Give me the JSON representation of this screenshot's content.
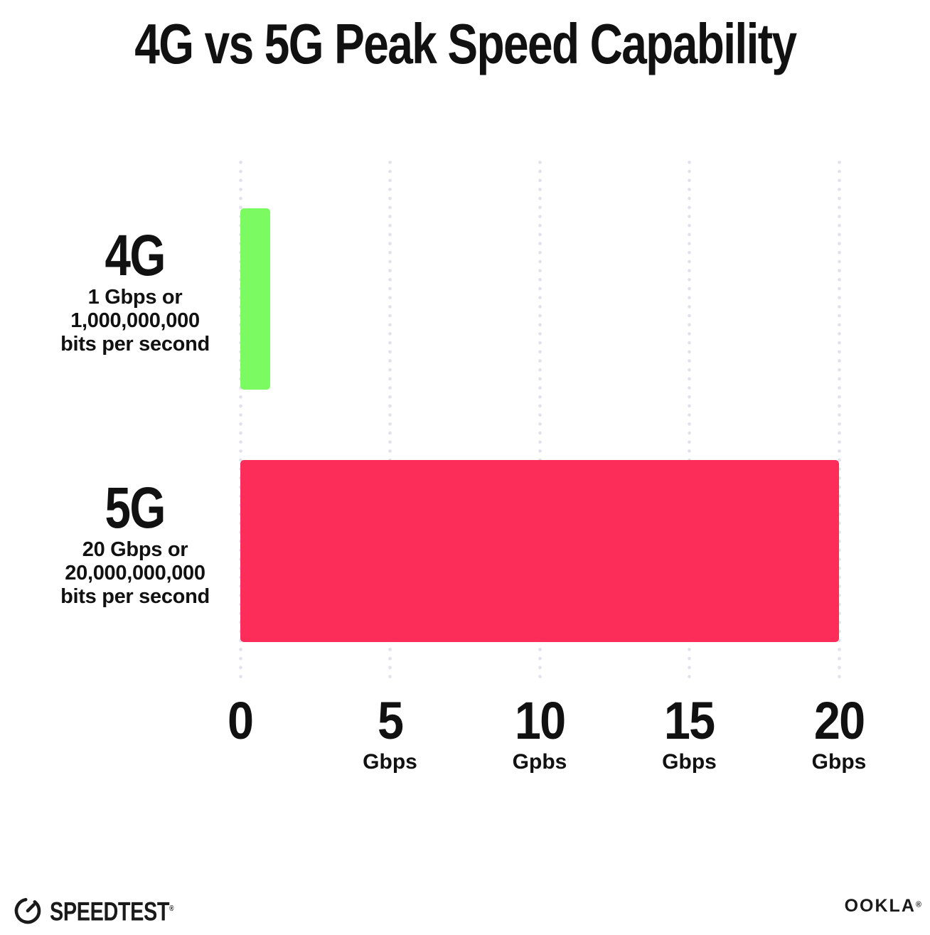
{
  "title": "4G vs 5G Peak Speed Capability",
  "chart_data": {
    "type": "bar",
    "orientation": "horizontal",
    "title": "4G vs 5G Peak Speed Capability",
    "categories": [
      "4G",
      "5G"
    ],
    "values": [
      1,
      20
    ],
    "value_unit": "Gbps",
    "xlim": [
      0,
      20
    ],
    "grid": "vertical-dotted",
    "legend": "none",
    "bar_colors": [
      "#7CFA61",
      "#FC2D58"
    ],
    "rows": [
      {
        "name": "4G",
        "line1": "1 Gbps or",
        "line2": "1,000,000,000",
        "line3": "bits per second"
      },
      {
        "name": "5G",
        "line1": "20 Gbps or",
        "line2": "20,000,000,000",
        "line3": "bits per second"
      }
    ],
    "x_ticks": [
      {
        "label": "0",
        "unit": ""
      },
      {
        "label": "5",
        "unit": "Gbps"
      },
      {
        "label": "10",
        "unit": "Gpbs"
      },
      {
        "label": "15",
        "unit": "Gbps"
      },
      {
        "label": "20",
        "unit": "Gbps"
      }
    ]
  },
  "footer": {
    "speedtest_label": "SPEEDTEST",
    "speedtest_trademark": "®",
    "ookla_label": "OOKLA",
    "ookla_trademark": "®"
  },
  "colors": {
    "background": "#FFFFFF",
    "text": "#111111",
    "bar_4g": "#7CFA61",
    "bar_5g": "#FC2D58",
    "grid_dot": "#E1E1EB"
  }
}
